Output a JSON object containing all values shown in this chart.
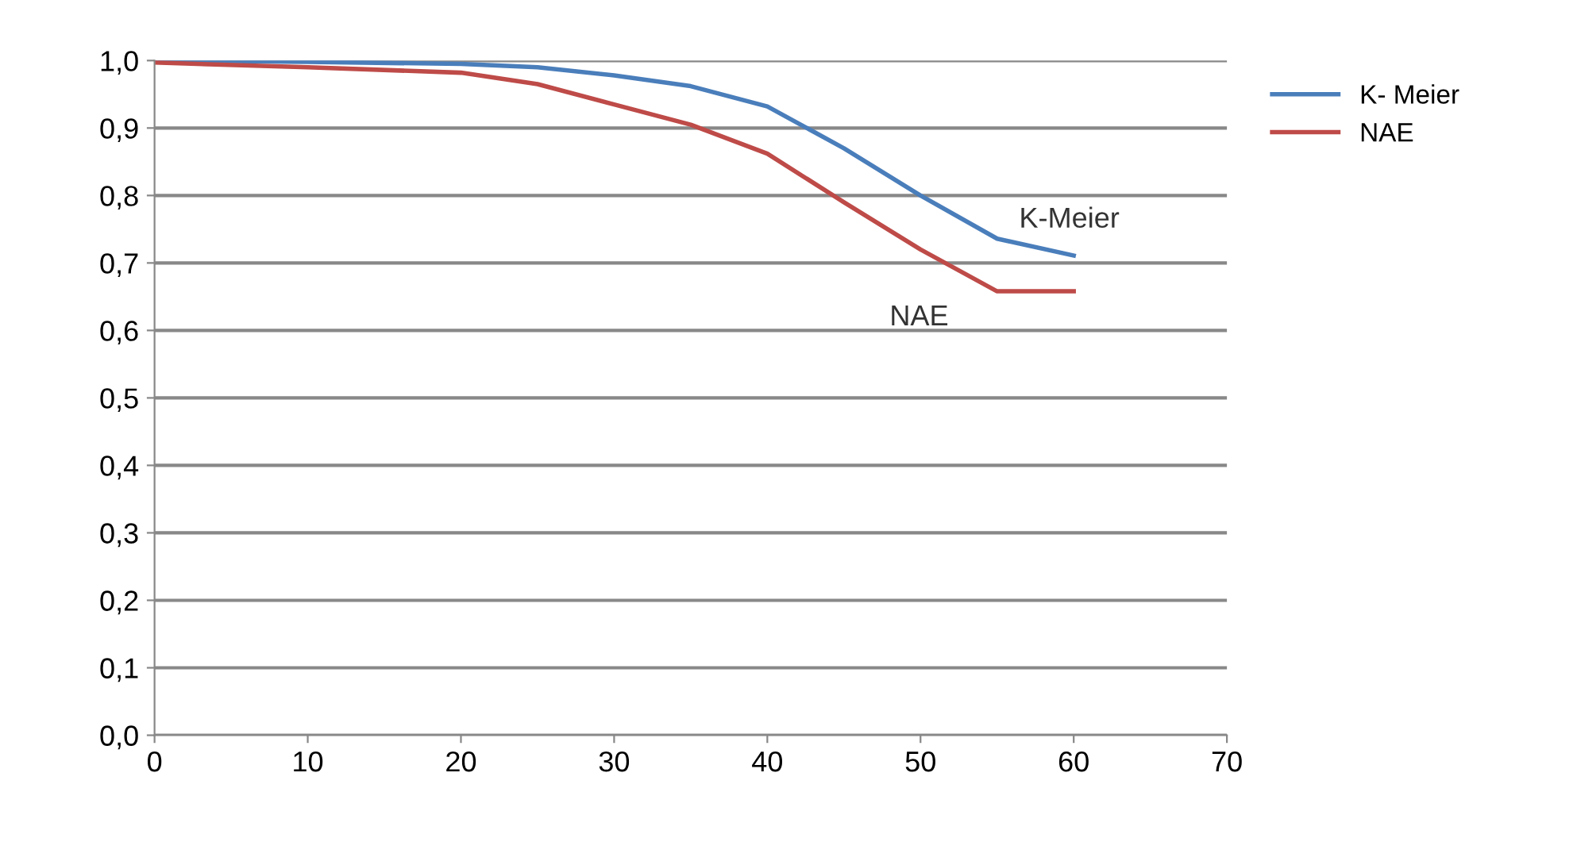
{
  "chart_data": {
    "type": "line",
    "x": [
      0,
      10,
      20,
      25,
      30,
      35,
      40,
      45,
      50,
      55,
      60
    ],
    "series": [
      {
        "name": "K- Meier",
        "color": "#4a7ebb",
        "values": [
          1.0,
          0.998,
          0.995,
          0.99,
          0.978,
          0.962,
          0.932,
          0.87,
          0.8,
          0.736,
          0.711
        ]
      },
      {
        "name": "NAE",
        "color": "#be4b48",
        "values": [
          0.997,
          0.99,
          0.982,
          0.965,
          0.935,
          0.905,
          0.862,
          0.79,
          0.72,
          0.658,
          0.658
        ]
      }
    ],
    "annotations": [
      {
        "text": "K-Meier",
        "x": 60,
        "y": 0.711
      },
      {
        "text": "NAE",
        "x": 55,
        "y": 0.658
      }
    ],
    "xlim": [
      0,
      70
    ],
    "xticks": [
      0,
      10,
      20,
      30,
      40,
      50,
      60,
      70
    ],
    "ylim": [
      0,
      1.0
    ],
    "yticks": [
      {
        "value": 0,
        "label": "0,0"
      },
      {
        "value": 0.1,
        "label": "0,1"
      },
      {
        "value": 0.2,
        "label": "0,2"
      },
      {
        "value": 0.3,
        "label": "0,3"
      },
      {
        "value": 0.4,
        "label": "0,4"
      },
      {
        "value": 0.5,
        "label": "0,5"
      },
      {
        "value": 0.6,
        "label": "0,6"
      },
      {
        "value": 0.7,
        "label": "0,7"
      },
      {
        "value": 0.8,
        "label": "0,8"
      },
      {
        "value": 0.9,
        "label": "0,9"
      },
      {
        "value": 1.0,
        "label": "1,0"
      }
    ],
    "grid": "y",
    "legend": "top right",
    "marker": "none",
    "line_style": "solid"
  }
}
